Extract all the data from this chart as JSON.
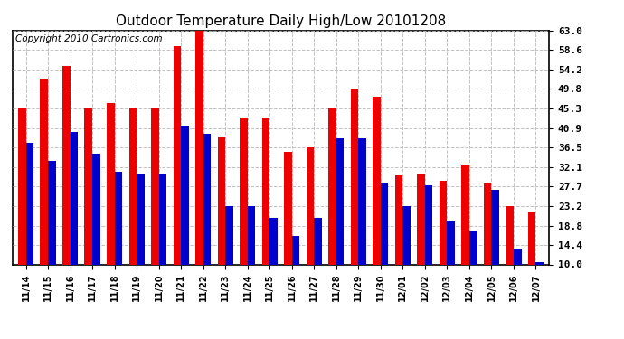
{
  "title": "Outdoor Temperature Daily High/Low 20101208",
  "copyright": "Copyright 2010 Cartronics.com",
  "dates": [
    "11/14",
    "11/15",
    "11/16",
    "11/17",
    "11/18",
    "11/19",
    "11/20",
    "11/21",
    "11/22",
    "11/23",
    "11/24",
    "11/25",
    "11/26",
    "11/27",
    "11/28",
    "11/29",
    "11/30",
    "12/01",
    "12/02",
    "12/03",
    "12/04",
    "12/05",
    "12/06",
    "12/07"
  ],
  "highs": [
    45.3,
    52.0,
    55.0,
    45.3,
    46.5,
    45.3,
    45.3,
    59.5,
    63.0,
    39.0,
    43.2,
    43.2,
    35.5,
    36.5,
    45.3,
    49.8,
    48.0,
    30.2,
    30.5,
    29.0,
    32.5,
    28.5,
    23.2,
    22.0
  ],
  "lows": [
    37.5,
    33.5,
    40.0,
    35.0,
    31.0,
    30.5,
    30.5,
    41.5,
    39.5,
    23.2,
    23.2,
    20.5,
    16.5,
    20.5,
    38.5,
    38.5,
    28.5,
    23.2,
    28.0,
    20.0,
    17.5,
    27.0,
    13.5,
    10.5
  ],
  "high_color": "#ee0000",
  "low_color": "#0000cc",
  "bg_color": "#ffffff",
  "grid_color": "#bbbbbb",
  "yticks": [
    10.0,
    14.4,
    18.8,
    23.2,
    27.7,
    32.1,
    36.5,
    40.9,
    45.3,
    49.8,
    54.2,
    58.6,
    63.0
  ],
  "ymin": 10.0,
  "ymax": 63.0,
  "title_fontsize": 11,
  "copyright_fontsize": 7.5,
  "bar_width": 0.35,
  "figwidth": 6.9,
  "figheight": 3.75,
  "dpi": 100
}
